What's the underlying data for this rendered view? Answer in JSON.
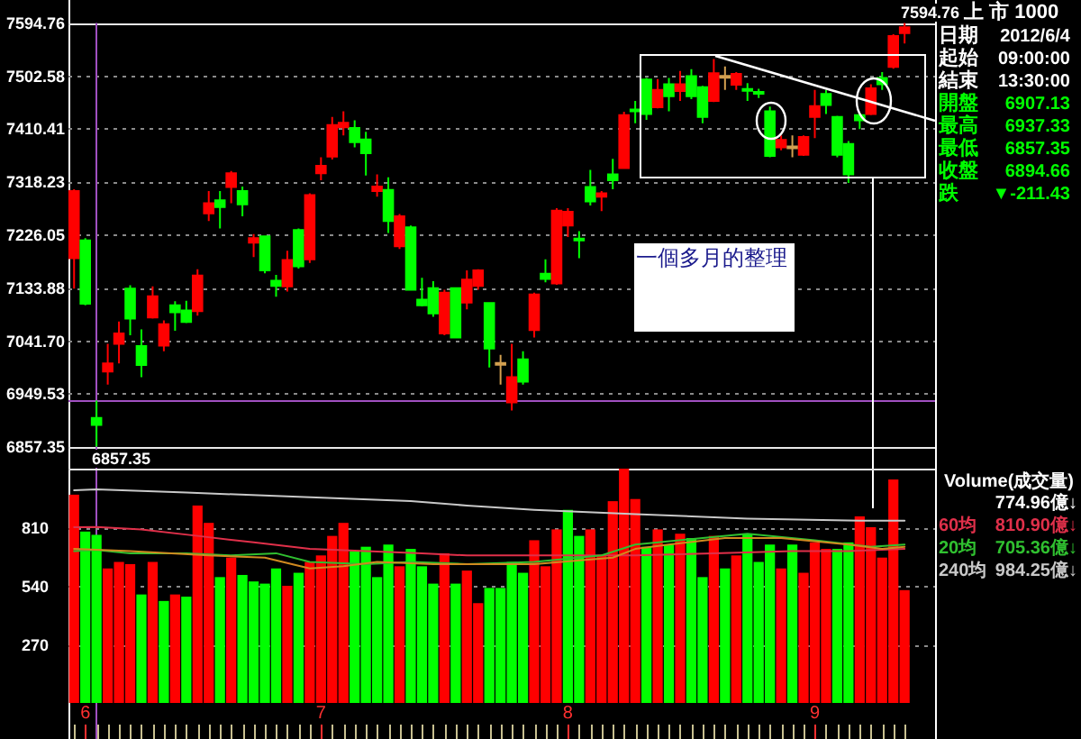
{
  "chart_data": [
    {
      "type": "candlestick",
      "categories": [
        null,
        null,
        null,
        null,
        null,
        null,
        null,
        null,
        null,
        null,
        null,
        null,
        null,
        null,
        null,
        null,
        null,
        null,
        null,
        null,
        null,
        null,
        null,
        null,
        null,
        null,
        null,
        null,
        null,
        null,
        null,
        null,
        null,
        null,
        null,
        null,
        null,
        null,
        null,
        null,
        null,
        null,
        null,
        null,
        null,
        null,
        null,
        null,
        null,
        null,
        null,
        null,
        null,
        null,
        null,
        null,
        null,
        null,
        null,
        null,
        null,
        null,
        null,
        null,
        null,
        null,
        null,
        null,
        null,
        null,
        null,
        null,
        null,
        null,
        null
      ],
      "ohlc": [
        [
          7185,
          7305,
          7132,
          7302
        ],
        [
          7216,
          7220,
          7103,
          7106
        ],
        [
          6907.13,
          6937.33,
          6857.35,
          6894.66
        ],
        [
          6988,
          7036,
          6965,
          7002
        ],
        [
          7036,
          7075,
          7002,
          7054
        ],
        [
          7132,
          7138,
          7051,
          7080
        ],
        [
          7032,
          7061,
          6978,
          6999
        ],
        [
          7082,
          7136,
          7080,
          7119
        ],
        [
          7033,
          7077,
          7023,
          7070
        ],
        [
          7103,
          7110,
          7059,
          7091
        ],
        [
          7094,
          7111,
          7072,
          7074
        ],
        [
          7093,
          7166,
          7085,
          7155
        ],
        [
          7263,
          7302,
          7250,
          7281
        ],
        [
          7286,
          7302,
          7237,
          7274
        ],
        [
          7309,
          7337,
          7281,
          7333
        ],
        [
          7302,
          7310,
          7258,
          7279
        ],
        [
          7212,
          7227,
          7187,
          7220
        ],
        [
          7223,
          7224,
          7159,
          7164
        ],
        [
          7146,
          7156,
          7118,
          7137
        ],
        [
          7136,
          7198,
          7127,
          7182
        ],
        [
          7234,
          7237,
          7167,
          7171
        ],
        [
          7183,
          7298,
          7177,
          7295
        ],
        [
          7333,
          7361,
          7321,
          7346
        ],
        [
          7362,
          7431,
          7357,
          7417
        ],
        [
          7413,
          7441,
          7399,
          7421
        ],
        [
          7412,
          7425,
          7378,
          7387
        ],
        [
          7392,
          7405,
          7329,
          7368
        ],
        [
          7302,
          7331,
          7292,
          7310
        ],
        [
          7304,
          7326,
          7229,
          7250
        ],
        [
          7206,
          7262,
          7201,
          7258
        ],
        [
          7239,
          7242,
          7130,
          7130
        ],
        [
          7113,
          7151,
          7101,
          7103
        ],
        [
          7133,
          7145,
          7083,
          7089
        ],
        [
          7054,
          7130,
          7051,
          7125
        ],
        [
          7133,
          7134,
          7046,
          7047
        ],
        [
          7108,
          7164,
          7096,
          7148
        ],
        [
          7137,
          7166,
          7130,
          7164
        ],
        [
          7107,
          7107,
          6995,
          7028
        ],
        [
          7001,
          7017,
          6965,
          7001
        ],
        [
          6934,
          7036,
          6920,
          6978
        ],
        [
          7009,
          7023,
          6965,
          6970
        ],
        [
          7060,
          7125,
          7047,
          7122
        ],
        [
          7158,
          7183,
          7143,
          7149
        ],
        [
          7141,
          7272,
          7139,
          7268
        ],
        [
          7242,
          7272,
          7222,
          7266
        ],
        [
          7219,
          7232,
          7185,
          7216
        ],
        [
          7309,
          7339,
          7277,
          7284
        ],
        [
          7292,
          7302,
          7267,
          7298
        ],
        [
          7331,
          7358,
          7305,
          7321
        ],
        [
          7342,
          7440,
          7341,
          7434
        ],
        [
          7444,
          7459,
          7420,
          7441
        ],
        [
          7496,
          7499,
          7426,
          7436
        ],
        [
          7448,
          7497,
          7446,
          7478
        ],
        [
          7488,
          7499,
          7441,
          7467
        ],
        [
          7476,
          7511,
          7459,
          7488
        ],
        [
          7502,
          7514,
          7462,
          7467
        ],
        [
          7483,
          7485,
          7420,
          7431
        ],
        [
          7459,
          7532,
          7457,
          7507
        ],
        [
          7501,
          7519,
          7478,
          7501
        ],
        [
          7487,
          7509,
          7478,
          7506
        ],
        [
          7479,
          7490,
          7459,
          7477
        ],
        [
          7474,
          7480,
          7464,
          7472
        ],
        [
          7441,
          7449,
          7361,
          7363
        ],
        [
          7378,
          7399,
          7373,
          7391
        ],
        [
          7378,
          7399,
          7361,
          7378
        ],
        [
          7365,
          7399,
          7363,
          7396
        ],
        [
          7431,
          7478,
          7394,
          7450
        ],
        [
          7471,
          7478,
          7436,
          7452
        ],
        [
          7431,
          7433,
          7361,
          7365
        ],
        [
          7384,
          7389,
          7316,
          7331
        ],
        [
          7434,
          7436,
          7410,
          7425
        ],
        [
          7436,
          7488,
          7434,
          7481
        ],
        [
          7499,
          7509,
          7478,
          7488
        ],
        [
          7518,
          7575,
          7515,
          7572
        ],
        [
          7577,
          7594.76,
          7559,
          7587
        ]
      ],
      "colors": [
        "#ff0000",
        "#00ff00",
        "#00ff00",
        "#ff0000",
        "#ff0000",
        "#00ff00",
        "#00ff00",
        "#ff0000",
        "#ff0000",
        "#00ff00",
        "#00ff00",
        "#ff0000",
        "#ff0000",
        "#00ff00",
        "#ff0000",
        "#00ff00",
        "#ff0000",
        "#00ff00",
        "#00ff00",
        "#ff0000",
        "#00ff00",
        "#ff0000",
        "#ff0000",
        "#ff0000",
        "#ff0000",
        "#00ff00",
        "#00ff00",
        "#ff0000",
        "#00ff00",
        "#ff0000",
        "#00ff00",
        "#00ff00",
        "#00ff00",
        "#ff0000",
        "#00ff00",
        "#ff0000",
        "#ff0000",
        "#00ff00",
        "#d2a050",
        "#ff0000",
        "#00ff00",
        "#ff0000",
        "#00ff00",
        "#ff0000",
        "#ff0000",
        "#00ff00",
        "#00ff00",
        "#ff0000",
        "#00ff00",
        "#ff0000",
        "#00ff00",
        "#00ff00",
        "#ff0000",
        "#00ff00",
        "#ff0000",
        "#00ff00",
        "#00ff00",
        "#ff0000",
        "#d2a050",
        "#ff0000",
        "#00ff00",
        "#00ff00",
        "#00ff00",
        "#ff0000",
        "#d2a050",
        "#ff0000",
        "#ff0000",
        "#00ff00",
        "#00ff00",
        "#00ff00",
        "#00ff00",
        "#ff0000",
        "#00ff00",
        "#ff0000",
        "#ff0000"
      ],
      "ylim": [
        6857.35,
        7594.76
      ],
      "yticks": [
        6857.35,
        6949.53,
        {
          "value": 7041.7,
          "label": "7041.70"
        },
        7133.88,
        7226.05,
        7318.23,
        7410.41,
        7502.58,
        7594.76
      ],
      "grid": "y",
      "tick_labels": "y",
      "ref_lines": [
        {
          "axis": "y",
          "value": 6937.33,
          "color": "#a050c0"
        }
      ],
      "annotations": [
        "一個多月的整理",
        "7594.76",
        "6857.35"
      ]
    },
    {
      "type": "bar",
      "legend_title": "Volume(成交量)",
      "categories": [
        null,
        "6",
        null,
        null,
        null,
        null,
        null,
        null,
        null,
        null,
        null,
        null,
        null,
        null,
        null,
        null,
        null,
        null,
        null,
        null,
        null,
        null,
        "7",
        null,
        null,
        null,
        null,
        null,
        null,
        null,
        null,
        null,
        null,
        null,
        null,
        null,
        null,
        null,
        null,
        null,
        null,
        null,
        null,
        null,
        "8",
        null,
        null,
        null,
        null,
        null,
        null,
        null,
        null,
        null,
        null,
        null,
        null,
        null,
        null,
        null,
        null,
        null,
        null,
        null,
        null,
        null,
        "9",
        null,
        null,
        null,
        null,
        null,
        null,
        null,
        null
      ],
      "series": [
        {
          "type": "bar",
          "values": [
            960,
            790,
            774.96,
            620,
            650,
            640,
            500,
            650,
            470,
            500,
            490,
            910,
            830,
            580,
            670,
            590,
            560,
            550,
            620,
            540,
            600,
            650,
            680,
            770,
            830,
            700,
            720,
            580,
            730,
            630,
            710,
            630,
            550,
            690,
            550,
            610,
            460,
            530,
            530,
            650,
            600,
            750,
            630,
            800,
            890,
            770,
            800,
            680,
            930,
            1080,
            940,
            720,
            800,
            730,
            780,
            760,
            580,
            770,
            620,
            680,
            780,
            650,
            730,
            620,
            730,
            600,
            740,
            710,
            710,
            740,
            860,
            810,
            670,
            1030,
            520
          ],
          "colors": [
            "#ff0000",
            "#00ff00",
            "#00ff00",
            "#ff0000",
            "#ff0000",
            "#ff0000",
            "#00ff00",
            "#ff0000",
            "#00ff00",
            "#ff0000",
            "#00ff00",
            "#ff0000",
            "#ff0000",
            "#00ff00",
            "#ff0000",
            "#00ff00",
            "#00ff00",
            "#00ff00",
            "#00ff00",
            "#ff0000",
            "#00ff00",
            "#ff0000",
            "#ff0000",
            "#ff0000",
            "#ff0000",
            "#00ff00",
            "#00ff00",
            "#00ff00",
            "#00ff00",
            "#ff0000",
            "#00ff00",
            "#00ff00",
            "#00ff00",
            "#ff0000",
            "#00ff00",
            "#ff0000",
            "#ff0000",
            "#00ff00",
            "#00ff00",
            "#00ff00",
            "#00ff00",
            "#ff0000",
            "#ff0000",
            "#ff0000",
            "#00ff00",
            "#00ff00",
            "#ff0000",
            "#ff0000",
            "#ff0000",
            "#ff0000",
            "#ff0000",
            "#00ff00",
            "#ff0000",
            "#00ff00",
            "#ff0000",
            "#00ff00",
            "#00ff00",
            "#ff0000",
            "#00ff00",
            "#ff0000",
            "#00ff00",
            "#00ff00",
            "#00ff00",
            "#ff0000",
            "#00ff00",
            "#ff0000",
            "#ff0000",
            "#ff0000",
            "#00ff00",
            "#00ff00",
            "#ff0000",
            "#ff0000",
            "#ff0000",
            "#ff0000",
            "#ff0000"
          ]
        },
        {
          "type": "line",
          "name": "60均",
          "color": "#e0304a",
          "values": [
            810,
            null,
            810.9,
            null,
            null,
            null,
            800,
            null,
            null,
            null,
            null,
            770,
            null,
            null,
            null,
            null,
            740,
            null,
            null,
            null,
            null,
            710,
            null,
            null,
            null,
            null,
            700,
            null,
            null,
            null,
            null,
            690,
            null,
            null,
            null,
            680,
            null,
            null,
            null,
            null,
            null,
            680,
            null,
            null,
            null,
            null,
            null,
            null,
            null,
            null,
            680,
            null,
            null,
            null,
            null,
            null,
            null,
            690,
            null,
            null,
            null,
            null,
            null,
            null,
            700,
            null,
            null,
            null,
            null,
            700,
            null,
            null,
            null,
            null,
            710
          ]
        },
        {
          "type": "line",
          "name": "20均",
          "color": "#30c030",
          "values": [
            700,
            null,
            705.36,
            null,
            null,
            690,
            null,
            null,
            null,
            null,
            690,
            null,
            null,
            null,
            680,
            null,
            null,
            null,
            690,
            null,
            null,
            650,
            null,
            null,
            null,
            null,
            640,
            null,
            null,
            null,
            650,
            null,
            null,
            null,
            null,
            640,
            null,
            null,
            null,
            null,
            null,
            650,
            null,
            null,
            null,
            null,
            null,
            680,
            null,
            null,
            730,
            null,
            null,
            null,
            null,
            null,
            760,
            null,
            null,
            null,
            780,
            null,
            null,
            null,
            null,
            null,
            750,
            null,
            null,
            null,
            null,
            720,
            null,
            null,
            730
          ]
        },
        {
          "type": "line",
          "name": "240均",
          "color": "#c8c8c8",
          "values": [
            980,
            null,
            984.25,
            null,
            null,
            null,
            null,
            null,
            null,
            null,
            970,
            null,
            null,
            null,
            null,
            null,
            null,
            null,
            null,
            null,
            950,
            null,
            null,
            null,
            null,
            null,
            null,
            null,
            null,
            null,
            930,
            null,
            null,
            null,
            null,
            910,
            null,
            null,
            null,
            null,
            null,
            890,
            null,
            null,
            null,
            null,
            null,
            null,
            null,
            null,
            870,
            null,
            null,
            null,
            null,
            null,
            null,
            null,
            null,
            null,
            850,
            null,
            null,
            null,
            null,
            null,
            null,
            null,
            null,
            null,
            840,
            null,
            null,
            null,
            840
          ]
        },
        {
          "type": "line",
          "color": "#d08a20",
          "values": [
            710,
            null,
            null,
            null,
            null,
            700,
            null,
            null,
            null,
            null,
            null,
            null,
            680,
            null,
            null,
            null,
            null,
            670,
            null,
            null,
            null,
            620,
            null,
            null,
            630,
            null,
            null,
            650,
            null,
            null,
            null,
            null,
            640,
            null,
            null,
            640,
            null,
            null,
            null,
            null,
            null,
            640,
            null,
            null,
            null,
            null,
            null,
            null,
            670,
            null,
            710,
            null,
            null,
            730,
            null,
            null,
            null,
            null,
            760,
            null,
            null,
            null,
            null,
            760,
            null,
            null,
            null,
            null,
            null,
            730,
            null,
            null,
            710,
            null,
            720
          ]
        }
      ],
      "ylim": [
        0,
        1080
      ],
      "yticks": [
        270,
        540,
        810
      ],
      "grid": "y",
      "legend": "right",
      "annotations": [
        "774.96億↓",
        "810.90億↓",
        "705.36億↓",
        "984.25億↓"
      ]
    },
    {
      "type": "other",
      "title": "上 市 1000",
      "annotations": [
        "日期",
        "2012/6/4",
        "起始",
        "09:00:00",
        "結束",
        "13:30:00",
        "開盤",
        "6907.13",
        "最高",
        "6937.33",
        "最低",
        "6857.35",
        "收盤",
        "6894.66",
        "跌",
        "▼-211.43"
      ],
      "colors": [
        "#ffffff",
        "#ffffff",
        "#ffffff",
        "#ffffff",
        "#ffffff",
        "#ffffff",
        "#00ff00",
        "#00ff00",
        "#00ff00",
        "#00ff00",
        "#00ff00",
        "#00ff00",
        "#00ff00",
        "#00ff00",
        "#00ff00",
        "#00ff00"
      ]
    }
  ]
}
